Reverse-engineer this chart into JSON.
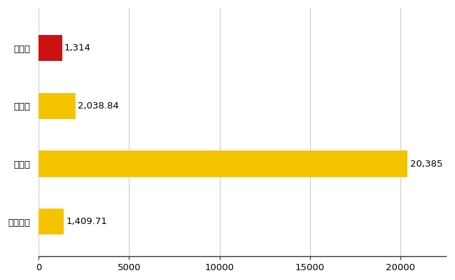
{
  "categories": [
    "三木市",
    "県平均",
    "県最大",
    "全国平均"
  ],
  "values": [
    1314,
    2038.84,
    20385,
    1409.71
  ],
  "labels": [
    "1,314",
    "2,038.84",
    "20,385",
    "1,409.71"
  ],
  "bar_colors": [
    "#cc1111",
    "#f5c400",
    "#f5c400",
    "#f5c400"
  ],
  "xlim": [
    0,
    22500
  ],
  "xticks": [
    0,
    5000,
    10000,
    15000,
    20000
  ],
  "background_color": "#ffffff",
  "grid_color": "#cccccc",
  "label_fontsize": 9.5,
  "tick_fontsize": 9.5,
  "bar_height": 0.45
}
